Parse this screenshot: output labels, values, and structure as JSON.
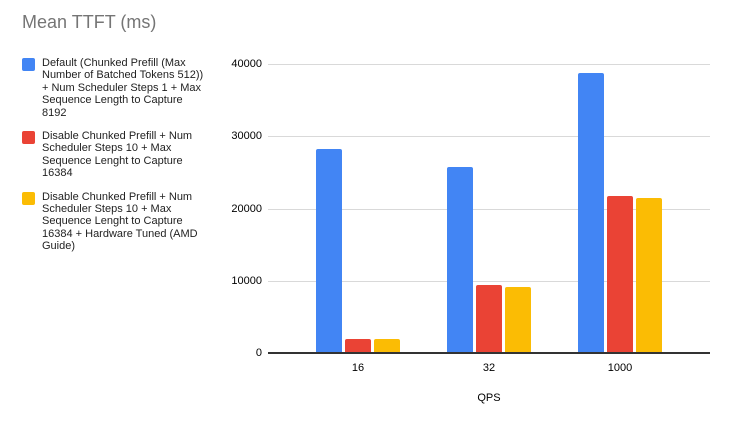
{
  "title": "Mean TTFT (ms)",
  "chart_data": {
    "type": "bar",
    "title": "Mean TTFT (ms)",
    "categories": [
      "16",
      "32",
      "1000"
    ],
    "xlabel": "QPS",
    "ylabel": "",
    "ylim": [
      0,
      40000
    ],
    "yticks": [
      0,
      10000,
      20000,
      30000,
      40000
    ],
    "grid": true,
    "legend_position": "left",
    "series": [
      {
        "name": "Default (Chunked Prefill (Max Number of Batched Tokens 512)) + Num Scheduler Steps 1 + Max Sequence Length to Capture 8192",
        "color": "#4285F4",
        "values": [
          28200,
          25800,
          38700
        ]
      },
      {
        "name": "Disable Chunked Prefill + Num Scheduler Steps 10 + Max Sequence Lenght to Capture 16384",
        "color": "#EA4335",
        "values": [
          2000,
          9400,
          21700
        ]
      },
      {
        "name": "Disable Chunked Prefill + Num Scheduler Steps 10 + Max Sequence Lenght to Capture 16384 + Hardware Tuned (AMD Guide)",
        "color": "#FBBC04",
        "values": [
          1900,
          9200,
          21400
        ]
      }
    ],
    "colors": {
      "grid": "#d9d9d9",
      "axis": "#333333",
      "title_text": "#757575",
      "label_text": "#000000"
    }
  }
}
